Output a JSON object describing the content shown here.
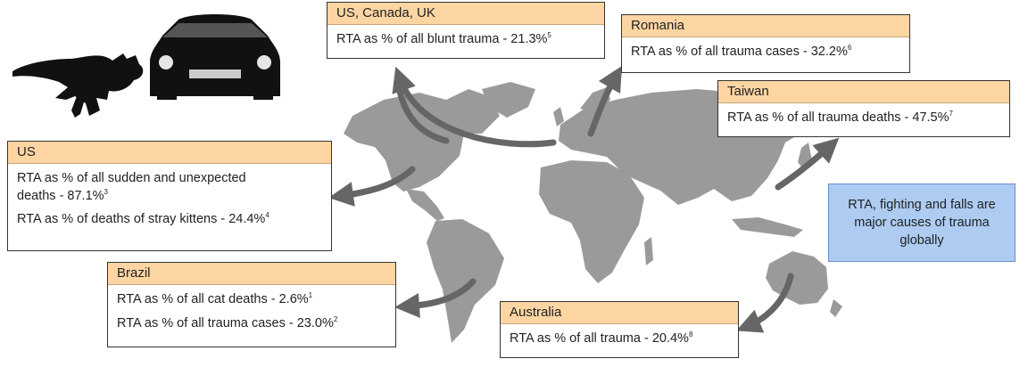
{
  "boxes": {
    "us_canada_uk": {
      "region": "US, Canada, UK",
      "text": "RTA as % of all blunt trauma - 21.3%",
      "ref": "5"
    },
    "romania": {
      "region": "Romania",
      "text": "RTA as % of all trauma cases - 32.2%",
      "ref": "6"
    },
    "taiwan": {
      "region": "Taiwan",
      "text": "RTA as % of all trauma deaths - 47.5%",
      "ref": "7"
    },
    "us": {
      "region": "US",
      "rows": [
        {
          "text": "RTA as % of all sudden and unexpected deaths - 87.1%",
          "ref": "3"
        },
        {
          "text": "RTA as % of deaths of stray kittens - 24.4%",
          "ref": "4"
        }
      ]
    },
    "brazil": {
      "region": "Brazil",
      "rows": [
        {
          "text": "RTA as % of all cat deaths - 2.6%",
          "ref": "1"
        },
        {
          "text": "RTA as % of all trauma cases - 23.0%",
          "ref": "2"
        }
      ]
    },
    "australia": {
      "region": "Australia",
      "text": "RTA as % of all trauma - 20.4%",
      "ref": "8"
    }
  },
  "callout": {
    "text": "RTA, fighting and falls are major causes of trauma globally"
  },
  "colors": {
    "header": "#fcd5a3",
    "callout": "#aecbf2",
    "map": "#9a9a9a",
    "arrow": "#666666"
  },
  "icons": [
    "running-cat-icon",
    "car-icon"
  ]
}
